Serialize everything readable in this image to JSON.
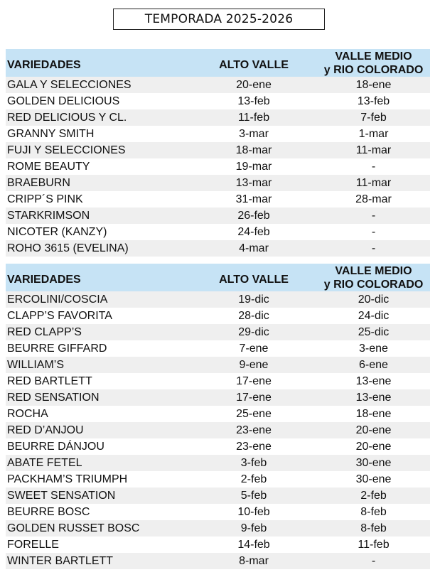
{
  "title": "TEMPORADA 2025-2026",
  "tables": [
    {
      "headers": [
        "VARIEDADES",
        "ALTO VALLE",
        "VALLE MEDIO",
        "y RIO COLORADO"
      ],
      "rows": [
        [
          "GALA Y SELECCIONES",
          "20-ene",
          "18-ene"
        ],
        [
          "GOLDEN DELICIOUS",
          "13-feb",
          "13-feb"
        ],
        [
          "RED DELICIOUS Y CL.",
          "11-feb",
          "7-feb"
        ],
        [
          "GRANNY SMITH",
          "3-mar",
          "1-mar"
        ],
        [
          "FUJI Y SELECCIONES",
          "18-mar",
          "11-mar"
        ],
        [
          "ROME BEAUTY",
          "19-mar",
          "-"
        ],
        [
          "BRAEBURN",
          "13-mar",
          "11-mar"
        ],
        [
          "CRIPP´S PINK",
          "31-mar",
          "28-mar"
        ],
        [
          "STARKRIMSON",
          "26-feb",
          "-"
        ],
        [
          "NICOTER (KANZY)",
          "24-feb",
          "-"
        ],
        [
          "ROHO 3615 (EVELINA)",
          "4-mar",
          "-"
        ]
      ]
    },
    {
      "headers": [
        "VARIEDADES",
        "ALTO VALLE",
        "VALLE MEDIO",
        "y RIO COLORADO"
      ],
      "rows": [
        [
          "ERCOLINI/COSCIA",
          "19-dic",
          "20-dic"
        ],
        [
          "CLAPP’S FAVORITA",
          "28-dic",
          "24-dic"
        ],
        [
          "RED CLAPP’S",
          "29-dic",
          "25-dic"
        ],
        [
          "BEURRE GIFFARD",
          "7-ene",
          "3-ene"
        ],
        [
          "WILLIAM’S",
          "9-ene",
          "6-ene"
        ],
        [
          "RED BARTLETT",
          "17-ene",
          "13-ene"
        ],
        [
          "RED SENSATION",
          "17-ene",
          "13-ene"
        ],
        [
          "ROCHA",
          "25-ene",
          "18-ene"
        ],
        [
          "RED D’ANJOU",
          "23-ene",
          "20-ene"
        ],
        [
          "BEURRE DÁNJOU",
          "23-ene",
          "20-ene"
        ],
        [
          "ABATE FETEL",
          "3-feb",
          "30-ene"
        ],
        [
          "PACKHAM’S TRIUMPH",
          "2-feb",
          "30-ene"
        ],
        [
          "SWEET SENSATION",
          "5-feb",
          "2-feb"
        ],
        [
          "BEURRE BOSC",
          "10-feb",
          "8-feb"
        ],
        [
          "GOLDEN RUSSET BOSC",
          "9-feb",
          "8-feb"
        ],
        [
          "FORELLE",
          "14-feb",
          "11-feb"
        ],
        [
          "WINTER BARTLETT",
          "8-mar",
          "-"
        ]
      ]
    }
  ],
  "colors": {
    "header_bg": "#c6e3f5",
    "row_alt": "#efefef",
    "row": "#ffffff"
  }
}
